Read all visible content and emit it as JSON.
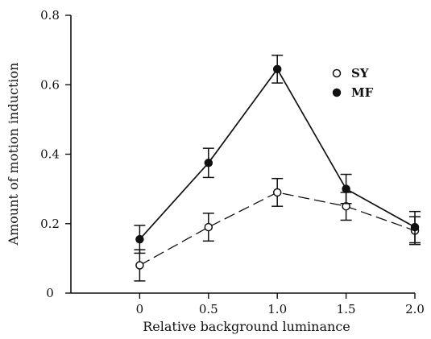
{
  "chart_data": {
    "type": "line",
    "title": "",
    "xlabel": "Relative background luminance",
    "ylabel": "Amount of motion induction",
    "xlim": [
      -0.5,
      2.0
    ],
    "ylim": [
      0,
      0.8
    ],
    "x_ticks": [
      "0",
      "0.5",
      "1.0",
      "1.5",
      "2.0"
    ],
    "x_tick_values": [
      0,
      0.5,
      1.0,
      1.5,
      2.0
    ],
    "y_ticks": [
      "0",
      "0.2",
      "0.4",
      "0.6",
      "0.8"
    ],
    "y_tick_values": [
      0,
      0.2,
      0.4,
      0.6,
      0.8
    ],
    "grid": false,
    "legend_position": "top-right",
    "series": [
      {
        "name": "SY",
        "marker": "open-circle",
        "line_style": "dashed",
        "x": [
          0,
          0.5,
          1.0,
          1.5,
          2.0
        ],
        "y": [
          0.08,
          0.19,
          0.29,
          0.25,
          0.18
        ],
        "error": [
          0.045,
          0.04,
          0.04,
          0.04,
          0.04
        ]
      },
      {
        "name": "MF",
        "marker": "filled-circle",
        "line_style": "solid",
        "x": [
          0,
          0.5,
          1.0,
          1.5,
          2.0
        ],
        "y": [
          0.155,
          0.375,
          0.645,
          0.3,
          0.19
        ],
        "error": [
          0.04,
          0.042,
          0.04,
          0.042,
          0.045
        ]
      }
    ]
  }
}
